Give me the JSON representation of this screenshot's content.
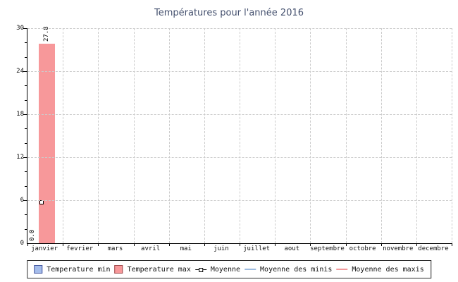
{
  "chart_data": {
    "type": "bar",
    "title": "Températures pour l'année 2016",
    "categories": [
      "janvier",
      "fevrier",
      "mars",
      "avril",
      "mai",
      "juin",
      "juillet",
      "aout",
      "septembre",
      "octobre",
      "novembre",
      "decembre"
    ],
    "series": [
      {
        "name": "Temperature min",
        "type": "bar",
        "color": "#a5bdeb",
        "values": [
          0.0,
          null,
          null,
          null,
          null,
          null,
          null,
          null,
          null,
          null,
          null,
          null
        ]
      },
      {
        "name": "Temperature max",
        "type": "bar",
        "color": "#f7989a",
        "values": [
          27.8,
          null,
          null,
          null,
          null,
          null,
          null,
          null,
          null,
          null,
          null,
          null
        ]
      },
      {
        "name": "Moyenne",
        "type": "scatter",
        "marker": "square-white-black-border",
        "values": [
          5.7,
          null,
          null,
          null,
          null,
          null,
          null,
          null,
          null,
          null,
          null,
          null
        ]
      },
      {
        "name": "Moyenne des minis",
        "type": "line",
        "color": "#9dbce0",
        "values": []
      },
      {
        "name": "Moyenne des maxis",
        "type": "line",
        "color": "#f2999b",
        "values": []
      }
    ],
    "ylim": [
      0,
      30
    ],
    "yticks": [
      0,
      6,
      12,
      18,
      24,
      30
    ],
    "ytick_labels": [
      "30",
      "24",
      "18",
      "12",
      "6",
      "0"
    ],
    "minor_tick_step": 2,
    "grid": "dashed both axes",
    "legend_position": "bottom",
    "annotations": {
      "min_label": "0.0",
      "max_label": "27.8"
    }
  },
  "legend": {
    "items": [
      {
        "label": "Temperature min"
      },
      {
        "label": "Temperature max"
      },
      {
        "label": "Moyenne"
      },
      {
        "label": "Moyenne des minis"
      },
      {
        "label": "Moyenne des maxis"
      }
    ]
  },
  "colors": {
    "bar_max": "#f7989a",
    "swatch_min_fill": "#a5bdeb",
    "swatch_min_border": "#44569f",
    "swatch_max_border": "#9e4a4c",
    "line_minis": "#9dbce0",
    "line_maxis": "#f2999b",
    "title_text": "#434f6d",
    "gridline": "#cbcbcb"
  }
}
